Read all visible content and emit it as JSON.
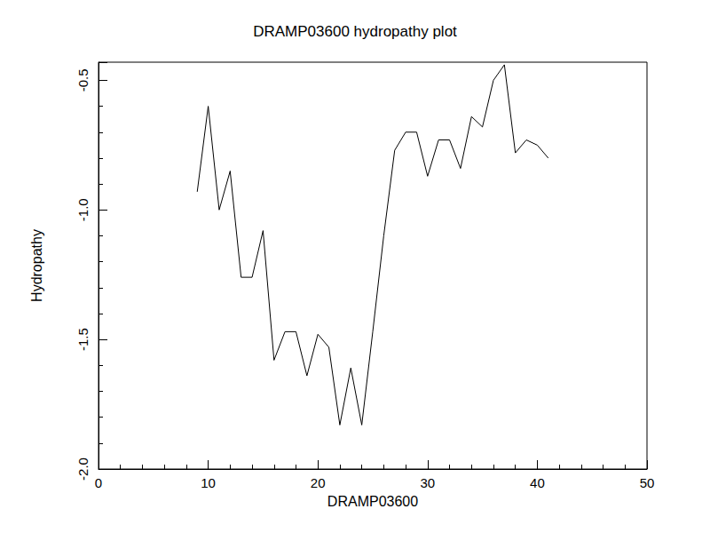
{
  "chart_data": {
    "type": "line",
    "title": "DRAMP03600 hydropathy plot",
    "x_label": "DRAMP03600",
    "y_label": "Hydropathy",
    "x": [
      9,
      10,
      11,
      12,
      13,
      14,
      15,
      16,
      17,
      18,
      19,
      20,
      21,
      22,
      23,
      24,
      25,
      26,
      27,
      28,
      29,
      30,
      31,
      32,
      33,
      34,
      35,
      36,
      37,
      38,
      39,
      40,
      41
    ],
    "values": [
      -0.93,
      -0.6,
      -1.0,
      -0.85,
      -1.26,
      -1.26,
      -1.08,
      -1.58,
      -1.47,
      -1.47,
      -1.64,
      -1.48,
      -1.53,
      -1.83,
      -1.61,
      -1.83,
      -1.47,
      -1.1,
      -0.77,
      -0.7,
      -0.7,
      -0.87,
      -0.73,
      -0.73,
      -0.84,
      -0.64,
      -0.68,
      -0.5,
      -0.44,
      -0.78,
      -0.73,
      -0.75,
      -0.8
    ],
    "color": "#000000",
    "xlim": [
      0,
      50
    ],
    "xticks": [
      0,
      10,
      20,
      30,
      40,
      50
    ],
    "ylim": [
      -2.0,
      -0.43
    ],
    "yticks": [
      {
        "value": -2,
        "label": "-2.0"
      },
      -1.5,
      {
        "value": -1,
        "label": "-1.0"
      },
      -0.5
    ],
    "grid": false
  }
}
